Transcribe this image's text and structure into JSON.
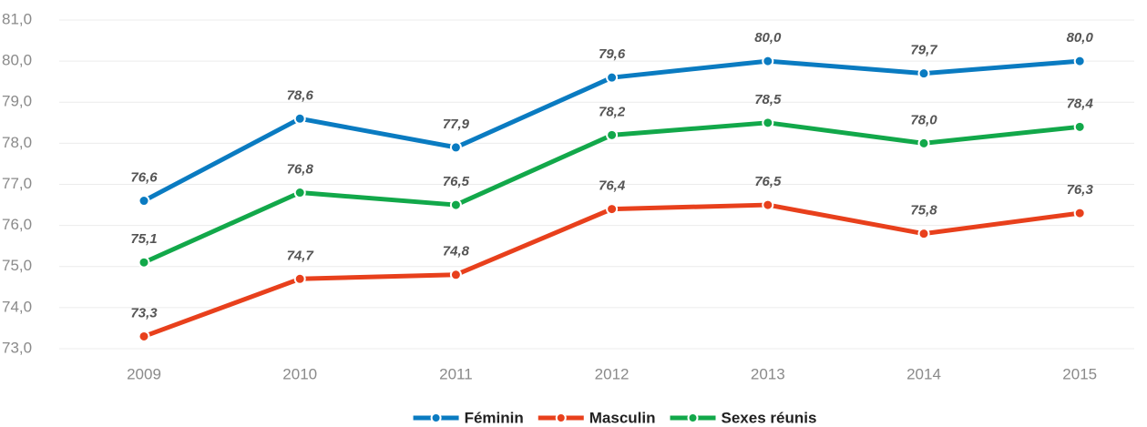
{
  "chart_data": {
    "type": "line",
    "categories": [
      "2009",
      "2010",
      "2011",
      "2012",
      "2013",
      "2014",
      "2015"
    ],
    "series": [
      {
        "name": "Féminin",
        "color": "#0a7bc1",
        "values": [
          76.6,
          78.6,
          77.9,
          79.6,
          80.0,
          79.7,
          80.0
        ],
        "value_labels": [
          "76,6",
          "78,6",
          "77,9",
          "79,6",
          "80,0",
          "79,7",
          "80,0"
        ]
      },
      {
        "name": "Masculin",
        "color": "#e8401c",
        "values": [
          73.3,
          74.7,
          74.8,
          76.4,
          76.5,
          75.8,
          76.3
        ],
        "value_labels": [
          "73,3",
          "74,7",
          "74,8",
          "76,4",
          "76,5",
          "75,8",
          "76,3"
        ]
      },
      {
        "name": "Sexes réunis",
        "color": "#12a84a",
        "values": [
          75.1,
          76.8,
          76.5,
          78.2,
          78.5,
          78.0,
          78.4
        ],
        "value_labels": [
          "75,1",
          "76,8",
          "76,5",
          "78,2",
          "78,5",
          "78,0",
          "78,4"
        ]
      }
    ],
    "ylim": [
      73,
      81
    ],
    "yticks": [
      {
        "value": 73,
        "label": "73,0"
      },
      {
        "value": 74,
        "label": "74,0"
      },
      {
        "value": 75,
        "label": "75,0"
      },
      {
        "value": 76,
        "label": "76,0"
      },
      {
        "value": 77,
        "label": "77,0"
      },
      {
        "value": 78,
        "label": "78,0"
      },
      {
        "value": 79,
        "label": "79,0"
      },
      {
        "value": 80,
        "label": "80,0"
      },
      {
        "value": 81,
        "label": "81,0"
      }
    ],
    "grid": true,
    "legend": "bottom"
  }
}
